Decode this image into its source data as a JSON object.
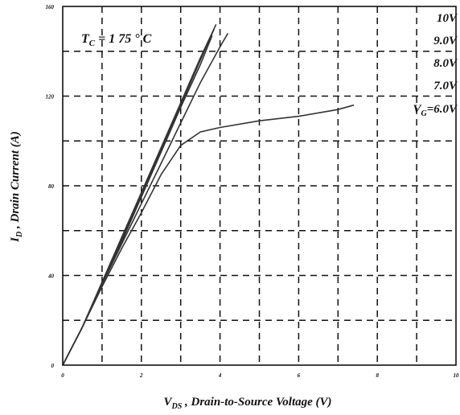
{
  "chart_data": {
    "type": "line",
    "title": "",
    "xlabel": {
      "main": "V",
      "sub": "DS",
      "rest": " , Drain-to-Source Voltage (V)"
    },
    "ylabel": {
      "main": "I",
      "sub": "D",
      "rest": " , Drain Current (A)"
    },
    "xlim": [
      0,
      10
    ],
    "ylim": [
      0,
      160
    ],
    "xticks": [
      0,
      2,
      4,
      6,
      8,
      10
    ],
    "yticks": [
      0,
      40,
      80,
      120,
      160
    ],
    "grid": "dashed",
    "annotation": {
      "main": "T",
      "sub": "C",
      "rest": " = 1 75 ° C"
    },
    "series": [
      {
        "name": "10V",
        "x": [
          0,
          0.5,
          1,
          1.5,
          2,
          2.5,
          3,
          3.5,
          3.9
        ],
        "y": [
          0,
          17,
          37,
          57,
          77,
          97,
          117,
          137,
          152
        ]
      },
      {
        "name": "9.0V",
        "x": [
          0,
          0.5,
          1,
          1.5,
          2,
          2.5,
          3,
          3.5,
          3.85
        ],
        "y": [
          0,
          17,
          37,
          56,
          76,
          96,
          116,
          136,
          150
        ]
      },
      {
        "name": "8.0V",
        "x": [
          0,
          0.5,
          1,
          1.5,
          2,
          2.5,
          3,
          3.5,
          3.8
        ],
        "y": [
          0,
          17,
          36,
          55,
          75,
          95,
          115,
          134,
          147
        ]
      },
      {
        "name": "7.0V",
        "x": [
          0,
          0.5,
          1,
          1.5,
          2,
          2.5,
          3,
          3.5,
          4,
          4.2
        ],
        "y": [
          0,
          17,
          36,
          54,
          72,
          90,
          108,
          126,
          142,
          148
        ]
      },
      {
        "name": "V_G=6.0V",
        "x": [
          0,
          0.5,
          1,
          1.5,
          2,
          2.5,
          3,
          3.5,
          4,
          5,
          6,
          7,
          7.4
        ],
        "y": [
          0,
          17,
          35,
          52,
          68,
          85,
          98,
          104,
          106,
          109,
          111,
          114,
          116
        ]
      }
    ],
    "legend": [
      {
        "text": "10V",
        "prefix": "",
        "sub": ""
      },
      {
        "text": "9.0V",
        "prefix": "",
        "sub": ""
      },
      {
        "text": "8.0V",
        "prefix": "",
        "sub": ""
      },
      {
        "text": "7.0V",
        "prefix": "",
        "sub": ""
      },
      {
        "text": "=6.0V",
        "prefix": "V",
        "sub": "G"
      }
    ],
    "line_color": "#333333"
  }
}
